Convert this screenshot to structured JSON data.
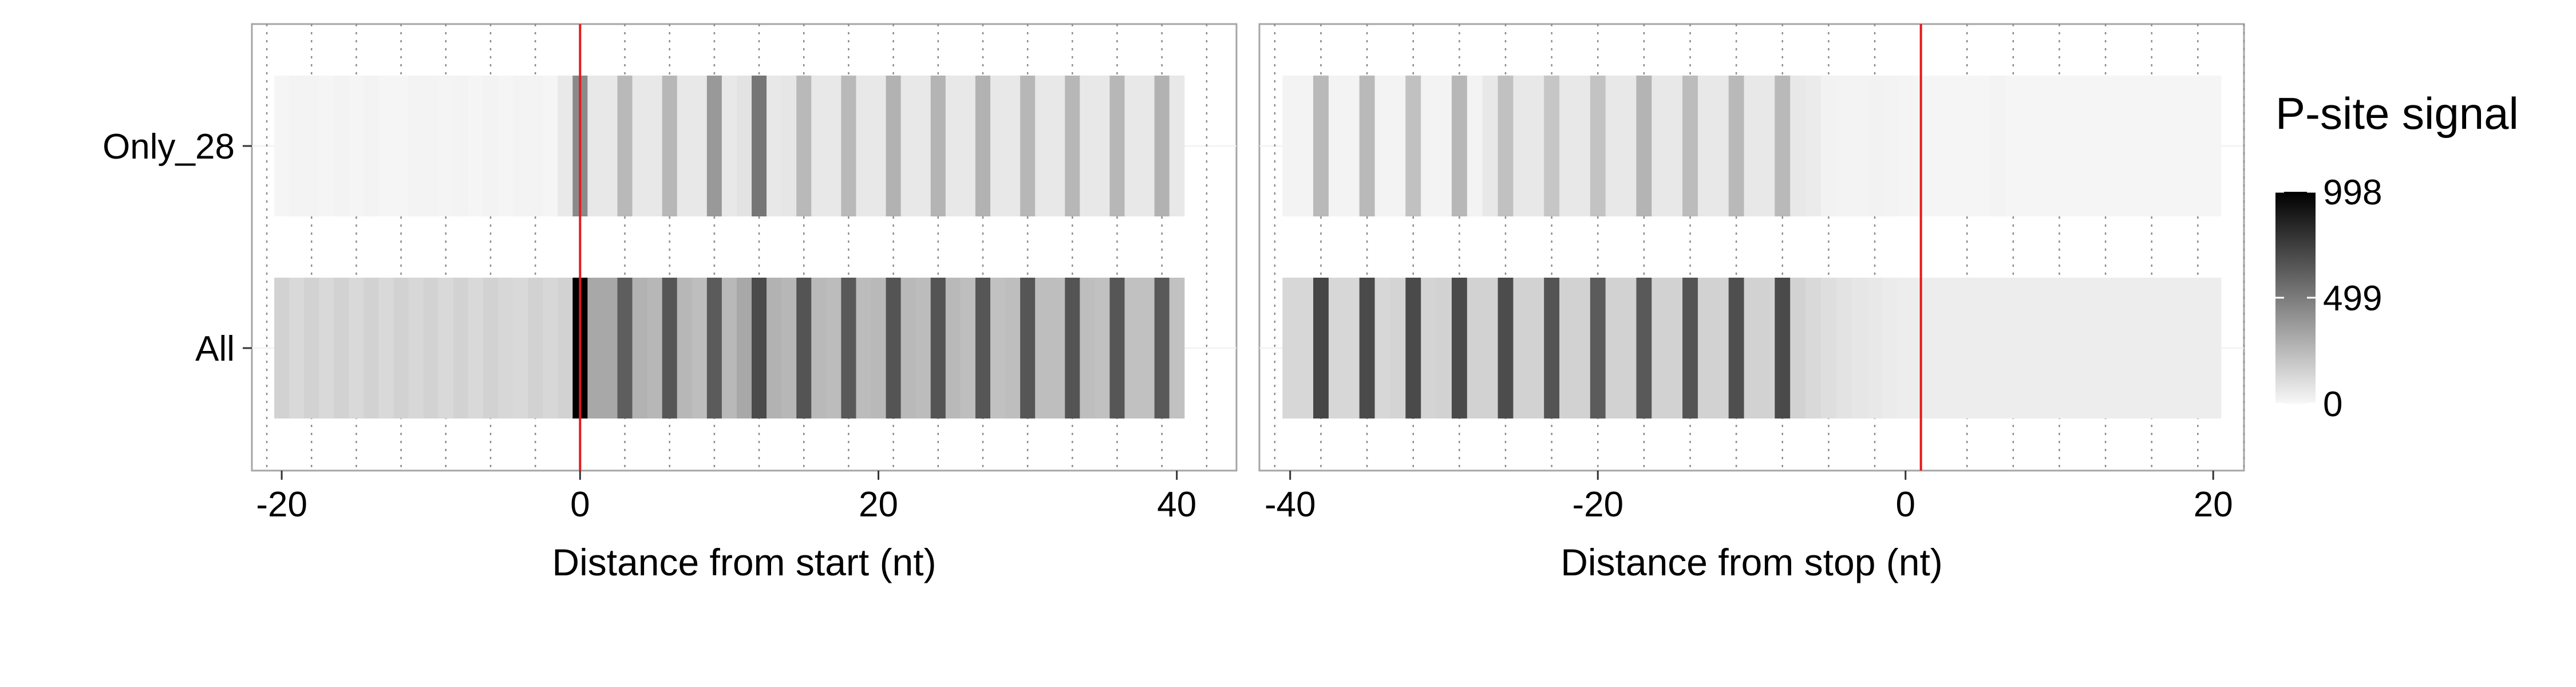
{
  "chart_data": {
    "type": "heatmap",
    "rows": [
      "Only_28",
      "All"
    ],
    "legend": {
      "title": "P-site signal",
      "min": 0,
      "max": 998,
      "ticks": [
        998,
        499,
        0
      ],
      "tick_labels": [
        "998",
        "499",
        "0"
      ],
      "color_low": "#f7f7f7",
      "color_high": "#000000",
      "placement": "right"
    },
    "panels": [
      {
        "xlabel": "Distance from start (nt)",
        "xlim": [
          -22,
          44
        ],
        "x_ticks": [
          -20,
          0,
          20,
          40
        ],
        "x_tick_labels": [
          "-20",
          "0",
          "20",
          "40"
        ],
        "reference_line_x": 0,
        "x_start": -20,
        "values": {
          "Only_28": [
            10,
            15,
            15,
            10,
            15,
            10,
            15,
            10,
            10,
            15,
            15,
            12,
            15,
            10,
            15,
            10,
            15,
            15,
            10,
            55,
            440,
            60,
            60,
            250,
            60,
            60,
            260,
            60,
            60,
            380,
            60,
            80,
            520,
            60,
            70,
            250,
            60,
            60,
            250,
            60,
            60,
            280,
            60,
            60,
            270,
            60,
            60,
            280,
            60,
            60,
            260,
            60,
            60,
            260,
            60,
            60,
            260,
            60,
            60,
            280,
            60
          ],
          "All": [
            150,
            120,
            150,
            120,
            150,
            120,
            150,
            120,
            150,
            130,
            150,
            120,
            150,
            120,
            150,
            130,
            120,
            150,
            130,
            150,
            998,
            320,
            320,
            620,
            280,
            260,
            650,
            260,
            230,
            630,
            250,
            320,
            700,
            280,
            260,
            660,
            250,
            240,
            640,
            240,
            250,
            660,
            250,
            240,
            660,
            250,
            230,
            650,
            220,
            230,
            650,
            230,
            230,
            660,
            230,
            220,
            650,
            220,
            220,
            640,
            220
          ]
        }
      },
      {
        "xlabel": "Distance from stop (nt)",
        "xlim": [
          -42,
          22
        ],
        "x_ticks": [
          -40,
          -20,
          0,
          20
        ],
        "x_tick_labels": [
          "-40",
          "-20",
          "0",
          "20"
        ],
        "reference_line_x": 1,
        "x_start": -40,
        "values": {
          "Only_28": [
            15,
            15,
            250,
            15,
            15,
            250,
            15,
            15,
            220,
            15,
            15,
            260,
            15,
            60,
            220,
            60,
            60,
            200,
            60,
            60,
            210,
            60,
            60,
            270,
            60,
            60,
            240,
            60,
            60,
            250,
            60,
            60,
            250,
            60,
            50,
            20,
            15,
            15,
            20,
            15,
            12,
            10,
            10,
            10,
            10,
            10,
            15,
            10,
            10,
            10,
            10,
            10,
            10,
            10,
            10,
            10,
            10,
            10,
            10,
            10,
            10
          ],
          "All": [
            130,
            130,
            720,
            130,
            130,
            700,
            130,
            140,
            700,
            140,
            150,
            700,
            150,
            150,
            690,
            150,
            150,
            660,
            150,
            150,
            630,
            150,
            150,
            640,
            150,
            150,
            660,
            150,
            150,
            680,
            150,
            150,
            700,
            150,
            120,
            100,
            80,
            70,
            60,
            50,
            40,
            40,
            40,
            40,
            40,
            40,
            40,
            40,
            40,
            40,
            40,
            40,
            40,
            40,
            40,
            40,
            40,
            40,
            40,
            40,
            40
          ]
        }
      }
    ]
  }
}
